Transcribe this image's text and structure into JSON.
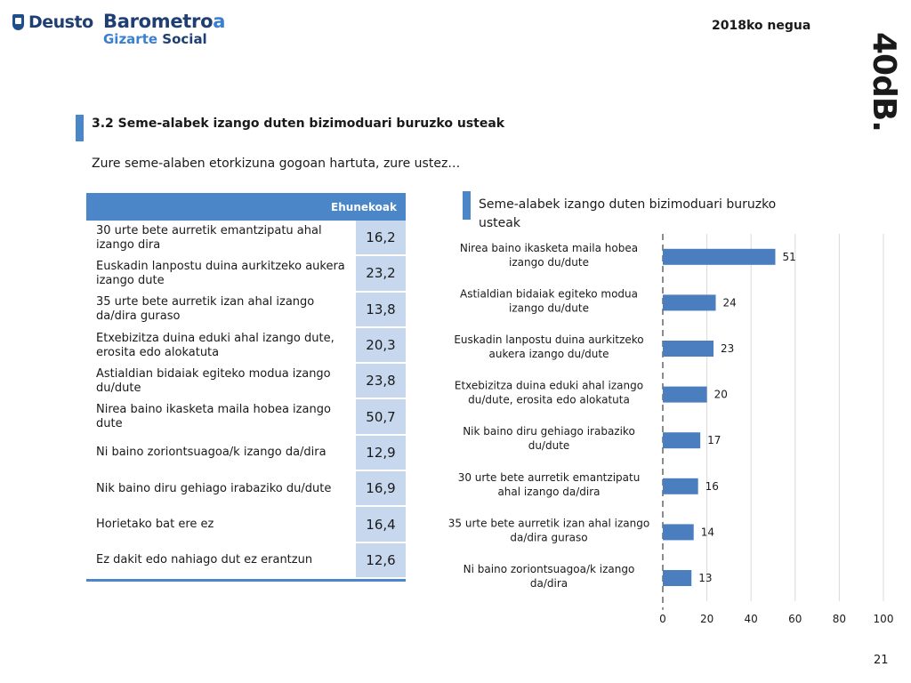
{
  "header": {
    "logo_text": "Deusto",
    "barometer_main": "Barometro",
    "barometer_accent": "a",
    "barometer_sub_1": "Gizarte",
    "barometer_sub_2": "Social",
    "season": "2018ko negua",
    "edition": "40dB."
  },
  "section": {
    "title": "3.2 Seme-alabek izango duten bizimoduari buruzko usteak",
    "question": "Zure seme-alaben etorkizuna gogoan hartuta, zure ustez…"
  },
  "table": {
    "header": "Ehunekoak",
    "rows": [
      {
        "label": "30 urte bete aurretik emantzipatu ahal izango dira",
        "value": "16,2"
      },
      {
        "label": "Euskadin lanpostu duina aurkitzeko aukera izango dute",
        "value": "23,2"
      },
      {
        "label": "35 urte bete aurretik izan ahal izango da/dira guraso",
        "value": "13,8"
      },
      {
        "label": "Etxebizitza duina eduki ahal izango dute, erosita edo alokatuta",
        "value": "20,3"
      },
      {
        "label": "Astialdian bidaiak egiteko modua izango du/dute",
        "value": "23,8"
      },
      {
        "label": "Nirea baino ikasketa maila hobea izango dute",
        "value": "50,7"
      },
      {
        "label": "Ni baino zoriontsuagoa/k izango da/dira",
        "value": "12,9"
      },
      {
        "label": "Nik baino diru gehiago irabaziko du/dute",
        "value": "16,9"
      },
      {
        "label": "Horietako bat ere ez",
        "value": "16,4"
      },
      {
        "label": "Ez dakit edo nahiago dut ez erantzun",
        "value": "12,6"
      }
    ]
  },
  "chart_data": {
    "type": "bar",
    "orientation": "horizontal",
    "title": "Seme-alabek izango duten bizimoduari buruzko usteak",
    "categories": [
      [
        "Nirea baino ikasketa maila hobea",
        "izango du/dute"
      ],
      [
        "Astialdian bidaiak egiteko modua",
        "izango du/dute"
      ],
      [
        "Euskadin lanpostu duina aurkitzeko",
        "aukera izango du/dute"
      ],
      [
        "Etxebizitza duina eduki ahal izango",
        "du/dute, erosita edo alokatuta"
      ],
      [
        "Nik baino diru gehiago irabaziko",
        "du/dute"
      ],
      [
        "30 urte bete aurretik emantzipatu",
        "ahal izango da/dira"
      ],
      [
        "35 urte bete aurretik izan ahal izango",
        "da/dira guraso"
      ],
      [
        "Ni baino zoriontsuagoa/k izango",
        "da/dira"
      ]
    ],
    "values": [
      51,
      24,
      23,
      20,
      17,
      16,
      14,
      13
    ],
    "xlim": [
      0,
      100
    ],
    "xticks": [
      0,
      20,
      40,
      60,
      80,
      100
    ],
    "grid": true,
    "bar_color": "#4a7ebf"
  },
  "footer": {
    "page_number": "21"
  }
}
